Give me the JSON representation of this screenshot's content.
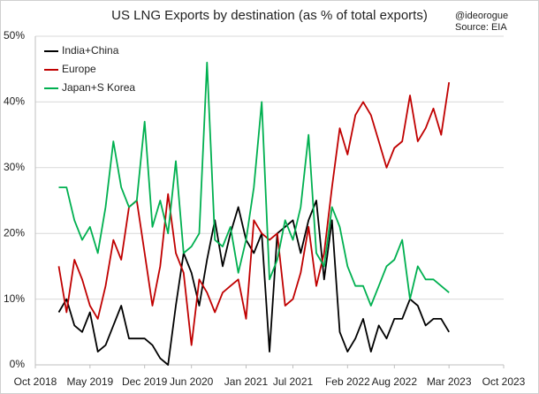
{
  "chart_data": {
    "type": "line",
    "title": "US LNG Exports by destination (as % of total exports)",
    "annotations": [
      "@ideorogue",
      "Source: EIA"
    ],
    "x": [
      "2019-01",
      "2019-02",
      "2019-03",
      "2019-04",
      "2019-05",
      "2019-06",
      "2019-07",
      "2019-08",
      "2019-09",
      "2019-10",
      "2019-11",
      "2019-12",
      "2020-01",
      "2020-02",
      "2020-03",
      "2020-04",
      "2020-05",
      "2020-06",
      "2020-07",
      "2020-08",
      "2020-09",
      "2020-10",
      "2020-11",
      "2020-12",
      "2021-01",
      "2021-02",
      "2021-03",
      "2021-04",
      "2021-05",
      "2021-06",
      "2021-07",
      "2021-08",
      "2021-09",
      "2021-10",
      "2021-11",
      "2021-12",
      "2022-01",
      "2022-02",
      "2022-03",
      "2022-04",
      "2022-05",
      "2022-06",
      "2022-07",
      "2022-08",
      "2022-09",
      "2022-10",
      "2022-11",
      "2022-12",
      "2023-01",
      "2023-02",
      "2023-03"
    ],
    "series": [
      {
        "name": "India+China",
        "color": "#000000",
        "values": [
          8,
          10,
          6,
          5,
          8,
          2,
          3,
          6,
          9,
          4,
          4,
          4,
          3,
          1,
          0,
          9,
          17,
          14,
          9,
          16,
          22,
          15,
          20,
          24,
          19,
          17,
          20,
          2,
          20,
          21,
          22,
          17,
          22,
          25,
          13,
          22,
          5,
          2,
          4,
          7,
          2,
          6,
          4,
          7,
          7,
          10,
          9,
          6,
          7,
          7,
          5
        ]
      },
      {
        "name": "Europe",
        "color": "#c00000",
        "values": [
          15,
          8,
          16,
          13,
          9,
          7,
          12,
          19,
          16,
          24,
          25,
          17,
          9,
          15,
          26,
          17,
          14,
          3,
          13,
          11,
          8,
          11,
          12,
          13,
          7,
          22,
          20,
          19,
          20,
          9,
          10,
          14,
          21,
          12,
          17,
          27,
          36,
          32,
          38,
          40,
          38,
          34,
          30,
          33,
          34,
          41,
          34,
          36,
          39,
          35,
          43
        ]
      },
      {
        "name": "Japan+S Korea",
        "color": "#00b050",
        "values": [
          27,
          27,
          22,
          19,
          21,
          17,
          24,
          34,
          27,
          24,
          25,
          37,
          21,
          25,
          20,
          31,
          17,
          18,
          20,
          46,
          19,
          18,
          21,
          14,
          19,
          27,
          40,
          13,
          16,
          22,
          19,
          24,
          35,
          17,
          15,
          24,
          21,
          15,
          12,
          12,
          9,
          12,
          15,
          16,
          19,
          10,
          15,
          13,
          13,
          12,
          11
        ]
      }
    ],
    "xlim": [
      "2018-10",
      "2023-10"
    ],
    "xticks": [
      {
        "value": "2018-10",
        "label": "Oct 2018"
      },
      {
        "value": "2019-05",
        "label": "May 2019"
      },
      {
        "value": "2019-12",
        "label": "Dec 2019"
      },
      {
        "value": "2020-06",
        "label": "Jun 2020"
      },
      {
        "value": "2021-01",
        "label": "Jan 2021"
      },
      {
        "value": "2021-07",
        "label": "Jul 2021"
      },
      {
        "value": "2022-02",
        "label": "Feb 2022"
      },
      {
        "value": "2022-08",
        "label": "Aug 2022"
      },
      {
        "value": "2023-03",
        "label": "Mar 2023"
      },
      {
        "value": "2023-10",
        "label": "Oct 2023"
      }
    ],
    "ylim": [
      0,
      50
    ],
    "yticks": [
      {
        "value": 0,
        "label": "0%"
      },
      {
        "value": 10,
        "label": "10%"
      },
      {
        "value": 20,
        "label": "20%"
      },
      {
        "value": 30,
        "label": "30%"
      },
      {
        "value": 40,
        "label": "40%"
      },
      {
        "value": 50,
        "label": "50%"
      }
    ],
    "grid": true,
    "legend": "top-left"
  }
}
